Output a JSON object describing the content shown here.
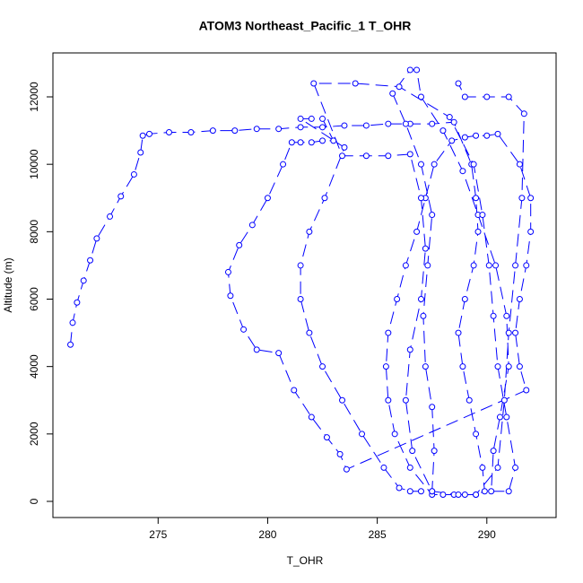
{
  "chart_data": {
    "type": "line",
    "title": "ATOM3 Northeast_Pacific_1 T_OHR",
    "x_label": "T_OHR",
    "y_label": "Altitude (m)",
    "color": "blue",
    "marker": "open-circle",
    "x": [
      271,
      271.1,
      271.3,
      271.6,
      271.9,
      272.2,
      272.8,
      273.3,
      273.9,
      274.2,
      274.3,
      274.6,
      275.5,
      276.5,
      277.5,
      278.5,
      279.5,
      280.5,
      281.5,
      282.5,
      283.5,
      284.5,
      285.5,
      286.5,
      287.5,
      288.5,
      289.3,
      289.5,
      289.6,
      289.4,
      289,
      288.7,
      288.9,
      289.2,
      289.5,
      289.8,
      289.9,
      289.5,
      289,
      288.5,
      288,
      287.5,
      286.5,
      285.8,
      285.5,
      285.4,
      285.5,
      285.9,
      286.3,
      286.8,
      287.2,
      287.6,
      288.4,
      289,
      289.5,
      290,
      290.5,
      291.5,
      292,
      292,
      291.8,
      291.5,
      291.3,
      291.5,
      291.8,
      283.6,
      283.3,
      282.7,
      282,
      281.2,
      280.5,
      279.5,
      278.9,
      278.3,
      278.2,
      278.7,
      279.3,
      280,
      280.7,
      281.1,
      281.5,
      282,
      282.5,
      283,
      282.5,
      282,
      281.5,
      283.5,
      282.6,
      281.9,
      281.5,
      281.5,
      281.9,
      282.5,
      283.4,
      284.3,
      285.3,
      286,
      286.5,
      287,
      287.5,
      287.6,
      287.5,
      287.2,
      287.1,
      287.3,
      287.5,
      287,
      286.3,
      285.7,
      286.5,
      286.8,
      287,
      288,
      288.9,
      289.6,
      290.4,
      290.9,
      291,
      290.6,
      290.3,
      290.2,
      291,
      291.3,
      290.9,
      290.5,
      290.3,
      290.1,
      289.8,
      289.4,
      288.3,
      286,
      284,
      282.1,
      283.4,
      284.5,
      285.5,
      286.5,
      287,
      287.2,
      287,
      286.5,
      286.3,
      286.6,
      287.5,
      288.7,
      289.5,
      290.5,
      290.8,
      291,
      291.3,
      291.6,
      291.7,
      291,
      290,
      289,
      288.7
    ],
    "values": [
      4650,
      5300,
      5900,
      6550,
      7150,
      7800,
      8450,
      9050,
      9700,
      10350,
      10850,
      10900,
      10950,
      10950,
      11000,
      11000,
      11050,
      11050,
      11100,
      11100,
      11150,
      11150,
      11200,
      11200,
      11200,
      11250,
      10000,
      9000,
      8000,
      7000,
      6000,
      5000,
      4000,
      3000,
      2000,
      1000,
      300,
      200,
      200,
      200,
      200,
      200,
      1000,
      2000,
      3000,
      4000,
      5000,
      6000,
      7000,
      8000,
      9000,
      10000,
      10700,
      10800,
      10850,
      10850,
      10900,
      10000,
      9000,
      8000,
      7000,
      6000,
      5000,
      4000,
      3300,
      950,
      1400,
      1900,
      2500,
      3300,
      4400,
      4500,
      5100,
      6100,
      6800,
      7600,
      8200,
      9000,
      10000,
      10650,
      10650,
      10650,
      10700,
      10700,
      11350,
      11350,
      11350,
      10500,
      9000,
      8000,
      7000,
      6000,
      5000,
      4000,
      3000,
      2000,
      1000,
      400,
      300,
      300,
      300,
      1500,
      2800,
      4000,
      5500,
      7000,
      8500,
      10000,
      11200,
      12100,
      12800,
      12800,
      12000,
      11000,
      9800,
      8500,
      7000,
      5500,
      4000,
      2500,
      1500,
      300,
      300,
      1000,
      2500,
      4000,
      5500,
      7000,
      8500,
      10000,
      11400,
      12300,
      12400,
      12400,
      10250,
      10250,
      10250,
      10300,
      9000,
      7500,
      6000,
      4500,
      3000,
      1500,
      300,
      200,
      200,
      1000,
      3000,
      5000,
      7000,
      9000,
      11500,
      12000,
      12000,
      12000,
      12400
    ],
    "xlim": [
      270.2,
      293.16
    ],
    "ylim": [
      -479,
      13304
    ],
    "xticks": [
      275,
      280,
      285,
      290
    ],
    "yticks": [
      0,
      2000,
      4000,
      6000,
      8000,
      10000,
      12000
    ]
  }
}
